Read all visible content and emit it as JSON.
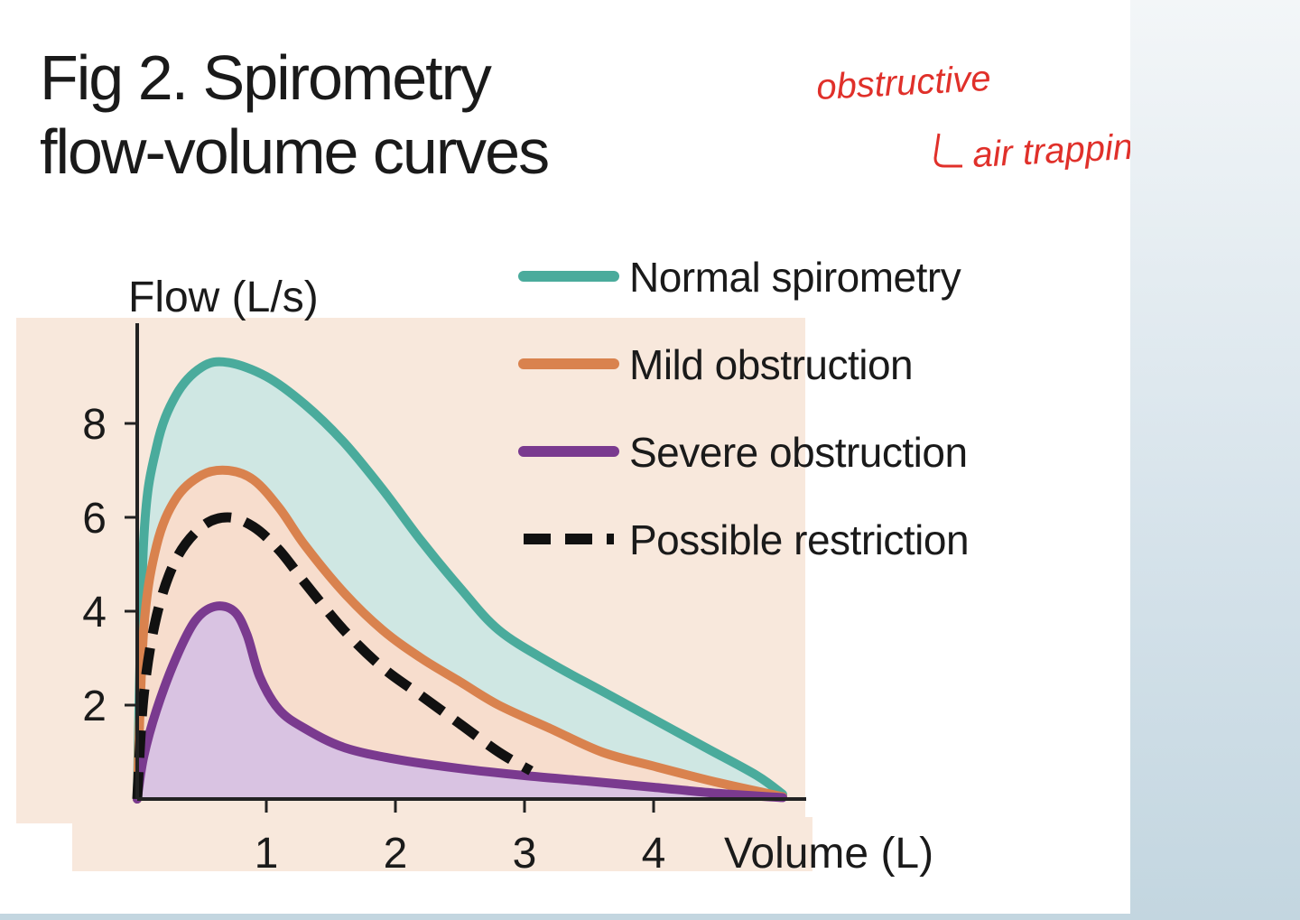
{
  "chart_data": {
    "type": "line",
    "title": [
      "Fig 2. Spirometry",
      "flow-volume curves"
    ],
    "ylabel": "Flow (L/s)",
    "xlabel": "Volume (L)",
    "xlim": [
      0,
      5.2
    ],
    "ylim": [
      0,
      10
    ],
    "xticks": [
      1,
      2,
      3,
      4
    ],
    "yticks": [
      2,
      4,
      6,
      8
    ],
    "series": [
      {
        "name": "Normal spirometry",
        "color": "#4aab9c",
        "fill": "#cfe7e3",
        "dashed": false,
        "points": [
          [
            0,
            0
          ],
          [
            0.05,
            5.5
          ],
          [
            0.15,
            7.5
          ],
          [
            0.3,
            8.6
          ],
          [
            0.5,
            9.2
          ],
          [
            0.7,
            9.3
          ],
          [
            1.0,
            9.0
          ],
          [
            1.3,
            8.4
          ],
          [
            1.6,
            7.6
          ],
          [
            1.9,
            6.6
          ],
          [
            2.2,
            5.5
          ],
          [
            2.5,
            4.5
          ],
          [
            2.8,
            3.6
          ],
          [
            3.2,
            2.9
          ],
          [
            3.6,
            2.3
          ],
          [
            4.0,
            1.7
          ],
          [
            4.4,
            1.1
          ],
          [
            4.8,
            0.5
          ],
          [
            5.0,
            0.1
          ]
        ]
      },
      {
        "name": "Mild obstruction",
        "color": "#d9824e",
        "fill": "#f7ddcd",
        "dashed": false,
        "points": [
          [
            0,
            0
          ],
          [
            0.05,
            3.6
          ],
          [
            0.15,
            5.4
          ],
          [
            0.3,
            6.4
          ],
          [
            0.5,
            6.9
          ],
          [
            0.7,
            7.0
          ],
          [
            0.9,
            6.8
          ],
          [
            1.1,
            6.2
          ],
          [
            1.3,
            5.4
          ],
          [
            1.6,
            4.4
          ],
          [
            1.9,
            3.6
          ],
          [
            2.2,
            3.0
          ],
          [
            2.5,
            2.5
          ],
          [
            2.8,
            2.0
          ],
          [
            3.2,
            1.5
          ],
          [
            3.6,
            1.0
          ],
          [
            4.0,
            0.7
          ],
          [
            4.5,
            0.35
          ],
          [
            5.0,
            0.05
          ]
        ]
      },
      {
        "name": "Severe obstruction",
        "color": "#7a3a8f",
        "fill": "#d9c3e2",
        "dashed": false,
        "points": [
          [
            0,
            0
          ],
          [
            0.05,
            0.9
          ],
          [
            0.15,
            1.9
          ],
          [
            0.3,
            3.0
          ],
          [
            0.45,
            3.8
          ],
          [
            0.6,
            4.1
          ],
          [
            0.75,
            4.0
          ],
          [
            0.85,
            3.5
          ],
          [
            0.95,
            2.6
          ],
          [
            1.1,
            1.9
          ],
          [
            1.3,
            1.5
          ],
          [
            1.6,
            1.1
          ],
          [
            2.0,
            0.85
          ],
          [
            2.5,
            0.65
          ],
          [
            3.0,
            0.5
          ],
          [
            3.5,
            0.38
          ],
          [
            4.0,
            0.25
          ],
          [
            4.5,
            0.12
          ],
          [
            5.0,
            0.03
          ]
        ]
      },
      {
        "name": "Possible restriction",
        "color": "#111111",
        "fill": "none",
        "dashed": true,
        "points": [
          [
            0,
            0
          ],
          [
            0.05,
            2.2
          ],
          [
            0.15,
            3.9
          ],
          [
            0.3,
            5.1
          ],
          [
            0.5,
            5.8
          ],
          [
            0.7,
            6.0
          ],
          [
            0.9,
            5.8
          ],
          [
            1.1,
            5.3
          ],
          [
            1.3,
            4.6
          ],
          [
            1.6,
            3.6
          ],
          [
            1.9,
            2.8
          ],
          [
            2.2,
            2.2
          ],
          [
            2.5,
            1.6
          ],
          [
            2.8,
            1.0
          ],
          [
            3.05,
            0.6
          ]
        ]
      }
    ]
  },
  "annotation": {
    "line1": "obstructive",
    "line2": "air trapping!!!",
    "color": "#e0302a"
  }
}
